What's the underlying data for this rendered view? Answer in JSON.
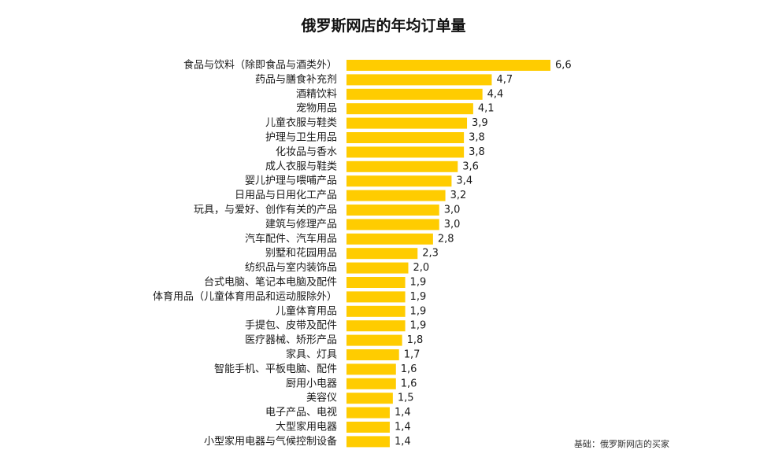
{
  "chart_data": {
    "type": "bar",
    "orientation": "horizontal",
    "title": "俄罗斯网店的年均订单量",
    "categories": [
      "食品与饮料（除即食品与酒类外）",
      "药品与膳食补充剂",
      "酒精饮料",
      "宠物用品",
      "儿童衣服与鞋类",
      "护理与卫生用品",
      "化妆品与香水",
      "成人衣服与鞋类",
      "婴儿护理与喂哺产品",
      "日用品与日用化工产品",
      "玩具，与爱好、创作有关的产品",
      "建筑与修理产品",
      "汽车配件、汽车用品",
      "别墅和花园用品",
      "纺织品与室内装饰品",
      "台式电脑、笔记本电脑及配件",
      "体育用品（儿童体育用品和运动服除外）",
      "儿童体育用品",
      "手提包、皮带及配件",
      "医疗器械、矫形产品",
      "家具、灯具",
      "智能手机、平板电脑、配件",
      "厨用小电器",
      "美容仪",
      "电子产品、电视",
      "大型家用电器",
      "小型家用电器与气候控制设备"
    ],
    "values": [
      6.6,
      4.7,
      4.4,
      4.1,
      3.9,
      3.8,
      3.8,
      3.6,
      3.4,
      3.2,
      3.0,
      3.0,
      2.8,
      2.3,
      2.0,
      1.9,
      1.9,
      1.9,
      1.9,
      1.8,
      1.7,
      1.6,
      1.6,
      1.5,
      1.4,
      1.4,
      1.4
    ],
    "value_labels": [
      "6,6",
      "4,7",
      "4,4",
      "4,1",
      "3,9",
      "3,8",
      "3,8",
      "3,6",
      "3,4",
      "3,2",
      "3,0",
      "3,0",
      "2,8",
      "2,3",
      "2,0",
      "1,9",
      "1,9",
      "1,9",
      "1,9",
      "1,8",
      "1,7",
      "1,6",
      "1,6",
      "1,5",
      "1,4",
      "1,4",
      "1,4"
    ],
    "bar_color": "#FFCC00",
    "xlim": [
      0,
      6.6
    ],
    "grid": false,
    "legend": "none",
    "note": "基础：俄罗斯网店的买家"
  }
}
